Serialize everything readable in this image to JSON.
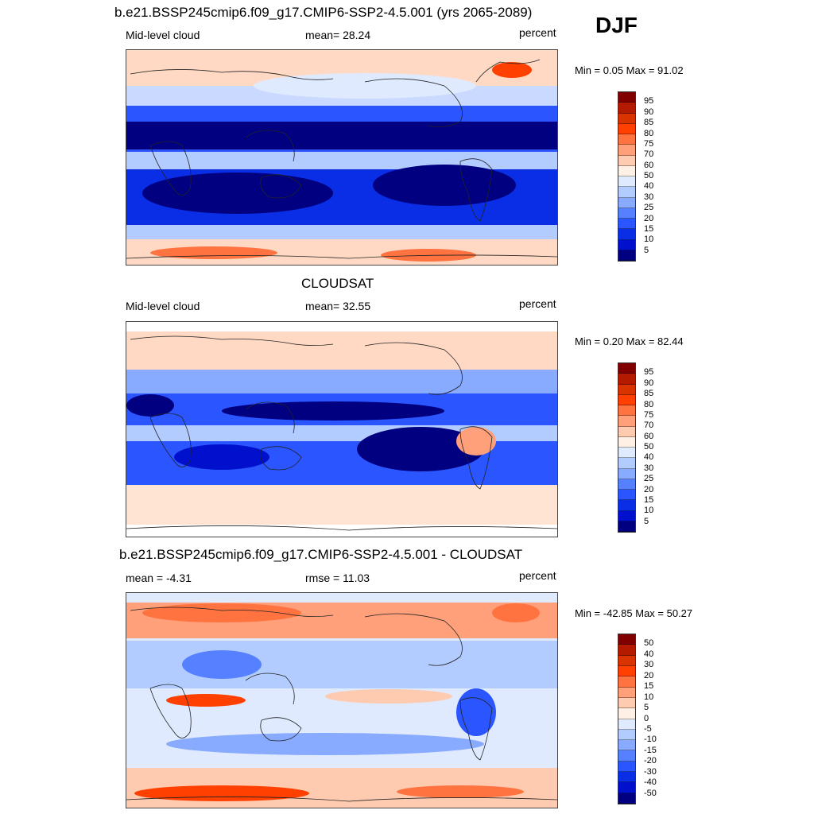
{
  "season": "DJF",
  "panels": [
    {
      "id": "model",
      "title": "b.e21.BSSP245cmip6.f09_g17.CMIP6-SSP2-4.5.001 (yrs 2065-2089)",
      "left_label": "Mid-level cloud",
      "center_label": "mean=  28.24",
      "right_label": "percent",
      "minmax": "Min =   0.05 Max =  91.02",
      "colorbar_labels": [
        "95",
        "90",
        "85",
        "80",
        "75",
        "70",
        "60",
        "50",
        "40",
        "30",
        "25",
        "20",
        "15",
        "10",
        "5"
      ]
    },
    {
      "id": "obs",
      "title": "CLOUDSAT",
      "left_label": "Mid-level cloud",
      "center_label": "mean=  32.55",
      "right_label": "percent",
      "minmax": "Min =   0.20 Max =  82.44",
      "colorbar_labels": [
        "95",
        "90",
        "85",
        "80",
        "75",
        "70",
        "60",
        "50",
        "40",
        "30",
        "25",
        "20",
        "15",
        "10",
        "5"
      ]
    },
    {
      "id": "diff",
      "title": "b.e21.BSSP245cmip6.f09_g17.CMIP6-SSP2-4.5.001 - CLOUDSAT",
      "left_label": "mean =  -4.31",
      "center_label": "rmse =  11.03",
      "right_label": "percent",
      "minmax": "Min = -42.85 Max =  50.27",
      "colorbar_labels": [
        "50",
        "40",
        "30",
        "20",
        "15",
        "10",
        "5",
        "0",
        "-5",
        "-10",
        "-15",
        "-20",
        "-30",
        "-40",
        "-50"
      ]
    }
  ],
  "colors": {
    "colorbar_top_to_bottom": [
      "#800000",
      "#b31a00",
      "#d93300",
      "#ff4000",
      "#ff7340",
      "#ffa07a",
      "#ffcbb0",
      "#fff0e6",
      "#dfeaff",
      "#b3ccff",
      "#88aaff",
      "#5580ff",
      "#2a55ff",
      "#0a2ee6",
      "#0010cc",
      "#000080"
    ],
    "coastline": "#222222"
  }
}
